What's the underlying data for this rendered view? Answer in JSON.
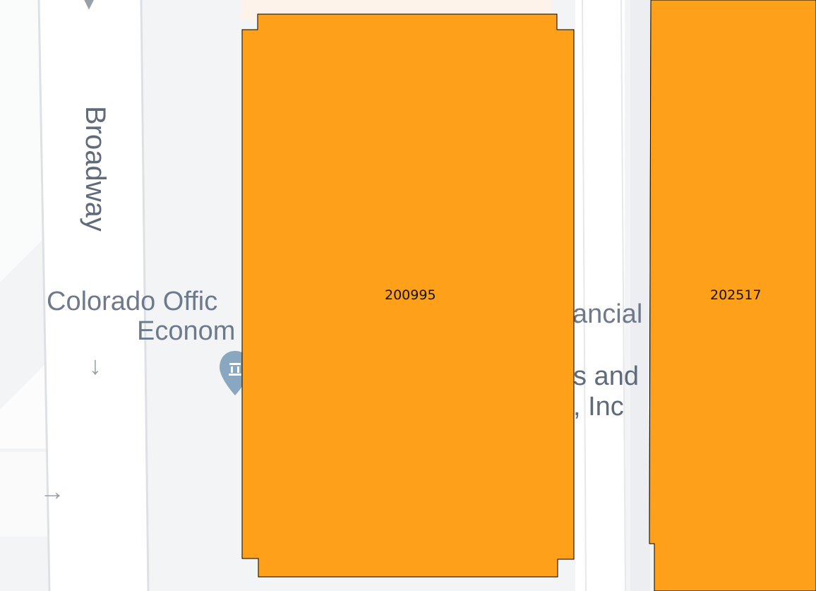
{
  "map": {
    "colors": {
      "background": "#f3f4f6",
      "road": "#ffffff",
      "road_edge": "#dde1e6",
      "parcel_fill": "#fea019",
      "parcel_stroke": "#000000",
      "label": "#6e7a8c",
      "poi_pin": "#8aa7c2"
    },
    "street_label": "Broadway",
    "poi_labels": {
      "office_line1": "Colorado Offic",
      "office_line2": "Econom",
      "financial": "ancial",
      "services_line1": "s and",
      "services_line2": ", Inc"
    },
    "poi_icon": "government-building-pin-icon",
    "arrow_icons": [
      "arrow-up-icon",
      "arrow-down-icon",
      "arrow-right-icon"
    ],
    "parcels": [
      {
        "id": "200995"
      },
      {
        "id": "202517"
      }
    ]
  }
}
